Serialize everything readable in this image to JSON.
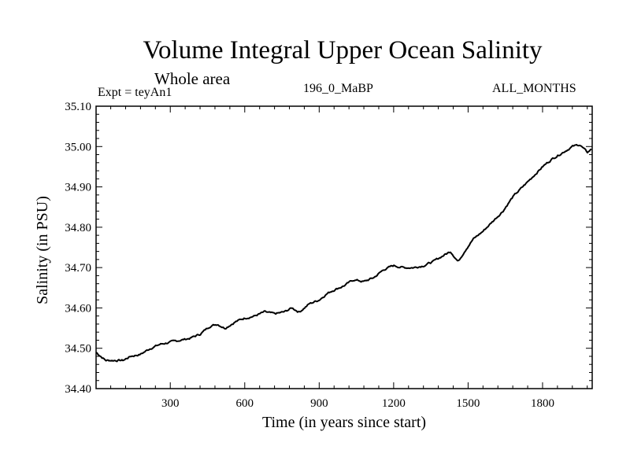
{
  "title": "Volume Integral Upper Ocean Salinity",
  "subtitle": "Whole area",
  "experiment": "Expt = teyAn1",
  "run_id": "196_0_MaBP",
  "months": "ALL_MONTHS",
  "chart_data": {
    "type": "line",
    "title": "Volume Integral Upper Ocean Salinity",
    "xlabel": "Time (in years since start)",
    "ylabel": "Salinity (in PSU)",
    "xlim": [
      1,
      2000
    ],
    "ylim": [
      34.4,
      35.1
    ],
    "x_ticks": [
      300,
      600,
      900,
      1200,
      1500,
      1800
    ],
    "x_tick_labels": [
      "300",
      "600",
      "900",
      "1200",
      "1500",
      "1800"
    ],
    "y_ticks": [
      34.4,
      34.5,
      34.6,
      34.7,
      34.8,
      34.9,
      35.0,
      35.1
    ],
    "y_tick_labels": [
      "34.40",
      "34.50",
      "34.60",
      "34.70",
      "34.80",
      "34.90",
      "35.00",
      "35.10"
    ],
    "grid": false,
    "series": [
      {
        "name": "Salinity",
        "color": "#000000",
        "x": [
          1,
          40,
          80,
          110,
          140,
          180,
          220,
          260,
          300,
          340,
          380,
          420,
          460,
          490,
          520,
          560,
          600,
          640,
          680,
          720,
          760,
          790,
          820,
          860,
          900,
          930,
          960,
          1000,
          1040,
          1080,
          1120,
          1160,
          1200,
          1240,
          1280,
          1320,
          1360,
          1400,
          1430,
          1460,
          1490,
          1520,
          1560,
          1600,
          1640,
          1680,
          1720,
          1760,
          1800,
          1840,
          1880,
          1920,
          1950,
          1980,
          2000
        ],
        "y": [
          34.49,
          34.47,
          34.47,
          34.47,
          34.48,
          34.485,
          34.5,
          34.51,
          34.515,
          34.52,
          34.525,
          34.535,
          34.555,
          34.56,
          34.55,
          34.565,
          34.575,
          34.58,
          34.59,
          34.585,
          34.59,
          34.6,
          34.59,
          34.61,
          34.62,
          34.635,
          34.645,
          34.655,
          34.67,
          34.665,
          34.675,
          34.695,
          34.705,
          34.7,
          34.7,
          34.705,
          34.715,
          34.73,
          34.74,
          34.715,
          34.745,
          34.77,
          34.79,
          34.815,
          34.84,
          34.875,
          34.9,
          34.925,
          34.95,
          34.97,
          34.985,
          35.0,
          35.005,
          34.985,
          34.995
        ]
      }
    ]
  }
}
